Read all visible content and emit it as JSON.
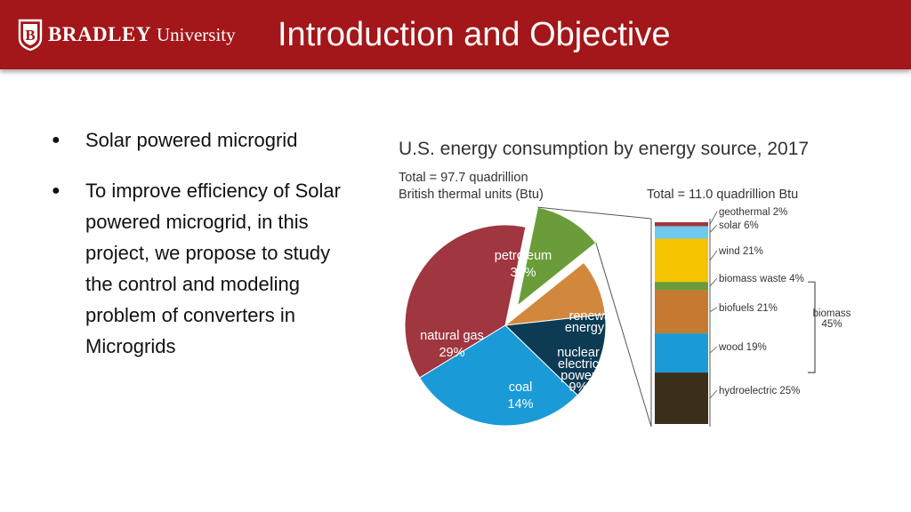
{
  "header": {
    "logo_brand": "BRADLEY",
    "logo_sub": "University",
    "title": "Introduction and Objective"
  },
  "bullets": [
    {
      "text": "Solar powered microgrid"
    },
    {
      "text": "To improve efficiency of Solar powered microgrid, in this project, we propose to study the control and modeling problem of converters in Microgrids"
    }
  ],
  "colors": {
    "header": "#a31619",
    "petroleum": "#a0363f",
    "natural_gas": "#1a9ad7",
    "coal": "#0d3b53",
    "nuclear": "#d2883c",
    "renewable": "#6a9d3a"
  },
  "chart_data": {
    "type": "pie",
    "title": "U.S. energy consumption by energy source, 2017",
    "total_label": "Total = 97.7 quadrillion\nBritish thermal units (Btu)",
    "slices": [
      {
        "name": "petroleum",
        "value": 37,
        "color": "#a0363f",
        "label": "petroleum\n37%"
      },
      {
        "name": "renewable energy",
        "value": 11,
        "color": "#6a9d3a",
        "label": "renewable\nenergy 11%",
        "exploded": true
      },
      {
        "name": "nuclear electric power",
        "value": 9,
        "color": "#d2883c",
        "label": "nuclear\nelectric\npower\n9%"
      },
      {
        "name": "coal",
        "value": 14,
        "color": "#0d3b53",
        "label": "coal\n14%"
      },
      {
        "name": "natural gas",
        "value": 29,
        "color": "#1a9ad7",
        "label": "natural gas\n29%"
      }
    ],
    "renewable_breakdown": {
      "type": "stacked-bar",
      "total_label": "Total = 11.0 quadrillion Btu",
      "segments": [
        {
          "name": "geothermal",
          "value": 2,
          "color": "#a0363f",
          "label": "geothermal 2%"
        },
        {
          "name": "solar",
          "value": 6,
          "color": "#6ec9ec",
          "label": "solar 6%"
        },
        {
          "name": "wind",
          "value": 21,
          "color": "#f5c400",
          "label": "wind 21%"
        },
        {
          "name": "biomass waste",
          "value": 4,
          "color": "#6a9d3a",
          "label": "biomass waste 4%"
        },
        {
          "name": "biofuels",
          "value": 21,
          "color": "#c57a30",
          "label": "biofuels 21%"
        },
        {
          "name": "wood",
          "value": 19,
          "color": "#1a9ad7",
          "label": "wood 19%"
        },
        {
          "name": "hydroelectric",
          "value": 25,
          "color": "#3b2f1c",
          "label": "hydroelectric 25%"
        }
      ],
      "group": {
        "name": "biomass",
        "label": "biomass\n45%",
        "members": [
          "biomass waste",
          "biofuels",
          "wood"
        ]
      }
    }
  }
}
